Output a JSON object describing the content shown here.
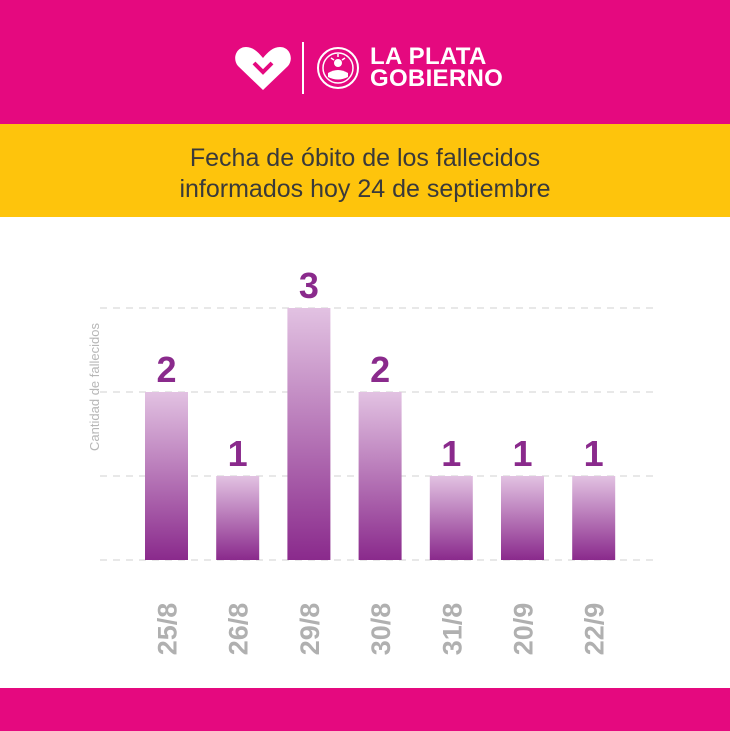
{
  "header": {
    "brand_line1": "LA PLATA",
    "brand_line2": "GOBIERNO",
    "background": "#e5097f"
  },
  "title": {
    "line1": "Fecha de óbito de los fallecidos",
    "line2": "informados hoy 24 de septiembre",
    "background": "#fec40c"
  },
  "chart_data": {
    "type": "bar",
    "categories": [
      "25/8",
      "26/8",
      "29/8",
      "30/8",
      "31/8",
      "20/9",
      "22/9"
    ],
    "values": [
      2,
      1,
      3,
      2,
      1,
      1,
      1
    ],
    "data_labels": [
      "2",
      "1",
      "3",
      "2",
      "1",
      "1",
      "1"
    ],
    "title": "Fecha de óbito de los fallecidos informados hoy 24 de septiembre",
    "xlabel": "",
    "ylabel": "Cantidad de fallecidos",
    "ylim": [
      0,
      3
    ],
    "grid": true,
    "colors": {
      "bar_top": "#e2c2e2",
      "bar_bottom": "#8a2a8c",
      "value_labels": "#8a2a8c",
      "tick_labels": "#b0b0b0",
      "gridlines": "#d0d0d0"
    }
  }
}
